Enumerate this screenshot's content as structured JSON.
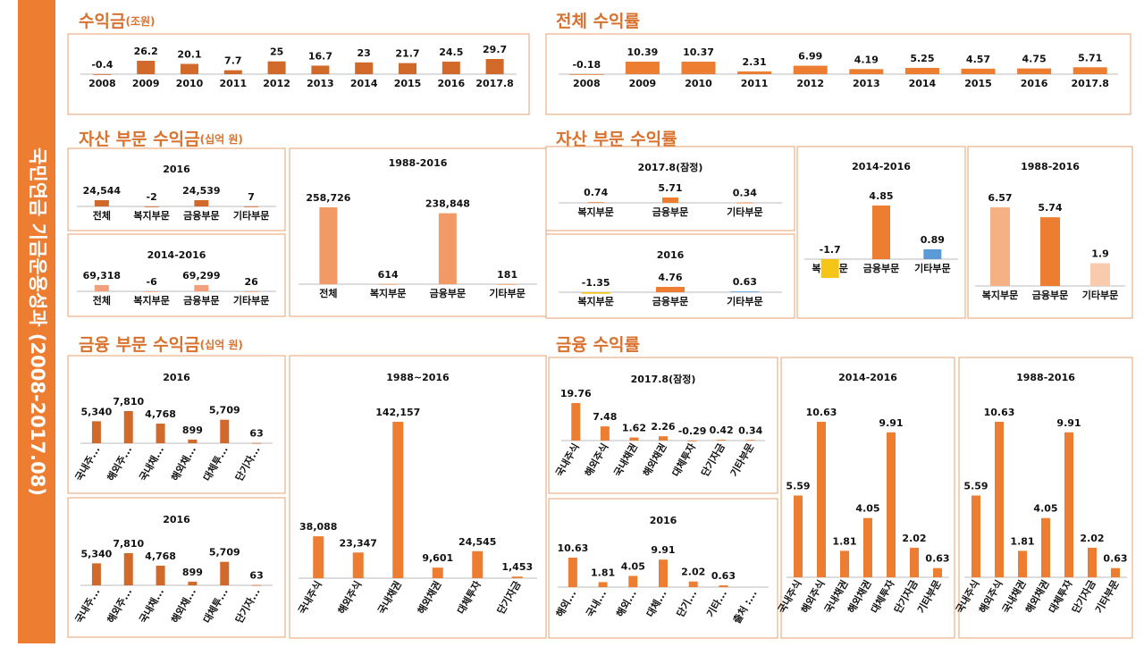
{
  "sidebar_title": "국민연금 기금운용성과 (2008-2017.08)",
  "sections": [
    {
      "title": "수익금",
      "unit": "(조원)"
    },
    {
      "title": "전체 수익률"
    },
    {
      "title": "자산 부문 수익금",
      "unit": "(십억 원)"
    },
    {
      "title": "자산 부문 수익률"
    },
    {
      "title": "금융 부문 수익금",
      "unit": "(십억 원)"
    },
    {
      "title": "금융 수익률"
    }
  ],
  "chart_data": [
    {
      "type": "bar",
      "categories": [
        "2008",
        "2009",
        "2010",
        "2011",
        "2012",
        "2013",
        "2014",
        "2015",
        "2016",
        "2017.8"
      ],
      "values": [
        -0.4,
        26.2,
        20.1,
        7.7,
        25,
        16.7,
        23,
        21.7,
        24.5,
        29.7
      ],
      "color": "#d0692a"
    },
    {
      "type": "bar",
      "categories": [
        "2008",
        "2009",
        "2010",
        "2011",
        "2012",
        "2013",
        "2014",
        "2015",
        "2016",
        "2017.8"
      ],
      "values": [
        -0.18,
        10.39,
        10.37,
        2.31,
        6.99,
        4.19,
        5.25,
        4.57,
        4.75,
        5.71
      ],
      "color": "#ed7d31"
    },
    {
      "type": "bar",
      "title": "2016",
      "categories": [
        "전체",
        "복지부문",
        "금융부문",
        "기타부문"
      ],
      "values": [
        24544,
        -2,
        24539,
        7
      ],
      "value_labels": [
        "24,544",
        "-2",
        "24,539",
        "7"
      ],
      "color": "#d0692a"
    },
    {
      "type": "bar",
      "title": "2014-2016",
      "categories": [
        "전체",
        "복지부문",
        "금융부문",
        "기타부문"
      ],
      "values": [
        69318,
        -6,
        69299,
        26
      ],
      "value_labels": [
        "69,318",
        "-6",
        "69,299",
        "26"
      ],
      "color": "#f0a07a"
    },
    {
      "type": "bar",
      "title": "1988-2016",
      "categories": [
        "전체",
        "복지부문",
        "금융부문",
        "기타부문"
      ],
      "values": [
        258726,
        614,
        238848,
        181
      ],
      "value_labels": [
        "258,726",
        "614",
        "238,848",
        "181"
      ],
      "color": "#f29a66"
    },
    {
      "type": "bar",
      "title": "2017.8(잠정)",
      "categories": [
        "복지부문",
        "금융부문",
        "기타부문"
      ],
      "values": [
        0.74,
        5.71,
        0.34
      ],
      "color": "#ed7d31"
    },
    {
      "type": "bar",
      "title": "2016",
      "categories": [
        "복지부문",
        "금융부문",
        "기타부문"
      ],
      "values": [
        -1.35,
        4.76,
        0.63
      ],
      "colors": [
        "#f5c518",
        "#ed7d31",
        "#5b9bd5"
      ]
    },
    {
      "type": "bar",
      "title": "2014-2016",
      "categories": [
        "복지부문",
        "금융부문",
        "기타부문"
      ],
      "values": [
        -1.7,
        4.85,
        0.89
      ],
      "colors": [
        "#f5c518",
        "#ed7d31",
        "#5b9bd5"
      ]
    },
    {
      "type": "bar",
      "title": "1988-2016",
      "categories": [
        "복지부문",
        "금융부문",
        "기타부문"
      ],
      "values": [
        6.57,
        5.74,
        1.9
      ],
      "colors": [
        "#f4b183",
        "#ed7d31",
        "#f8cbad"
      ]
    },
    {
      "type": "bar",
      "title": "2016",
      "categories": [
        "국내주...",
        "해외주...",
        "국내채...",
        "해외채...",
        "대체투...",
        "단기자..."
      ],
      "values": [
        5340,
        7810,
        4768,
        899,
        5709,
        63
      ],
      "value_labels": [
        "5,340",
        "7,810",
        "4,768",
        "899",
        "5,709",
        "63"
      ],
      "color": "#d0692a"
    },
    {
      "type": "bar",
      "title": "2016",
      "categories": [
        "국내주...",
        "해외주...",
        "국내채...",
        "해외채...",
        "대체투...",
        "단기자..."
      ],
      "values": [
        5340,
        7810,
        4768,
        899,
        5709,
        63
      ],
      "value_labels": [
        "5,340",
        "7,810",
        "4,768",
        "899",
        "5,709",
        "63"
      ],
      "color": "#d0692a"
    },
    {
      "type": "bar",
      "title": "1988~2016",
      "categories": [
        "국내주식",
        "해외주식",
        "국내채권",
        "해외채권",
        "대체투자",
        "단기자금"
      ],
      "values": [
        38088,
        23347,
        142157,
        9601,
        24545,
        1453
      ],
      "value_labels": [
        "38,088",
        "23,347",
        "142,157",
        "9,601",
        "24,545",
        "1,453"
      ],
      "color": "#ed7d31"
    },
    {
      "type": "bar",
      "title": "2017.8(잠정)",
      "categories": [
        "국내주식",
        "해외주식",
        "국내채권",
        "해외채권",
        "대체투자",
        "단기자금",
        "기타부문"
      ],
      "values": [
        19.76,
        7.48,
        1.62,
        2.26,
        -0.29,
        0.42,
        0.34
      ],
      "color": "#ed7d31"
    },
    {
      "type": "bar",
      "title": "2016",
      "categories": [
        "해외...",
        "국내...",
        "해외...",
        "대체...",
        "단기...",
        "기타...",
        "출처 :..."
      ],
      "values": [
        10.63,
        1.81,
        4.05,
        9.91,
        2.02,
        0.63,
        null
      ],
      "color": "#ed7d31"
    },
    {
      "type": "bar",
      "title": "2014-2016",
      "categories": [
        "국내주식",
        "해외주식",
        "국내채권",
        "해외채권",
        "대체투자",
        "단기자금",
        "기타부문"
      ],
      "values": [
        5.59,
        10.63,
        1.81,
        4.05,
        9.91,
        2.02,
        0.63
      ],
      "color": "#ed7d31"
    },
    {
      "type": "bar",
      "title": "1988-2016",
      "categories": [
        "국내주식",
        "해외주식",
        "국내채권",
        "해외채권",
        "대체투자",
        "단기자금",
        "기타부문"
      ],
      "values": [
        5.59,
        10.63,
        1.81,
        4.05,
        9.91,
        2.02,
        0.63
      ],
      "color": "#ed7d31"
    }
  ]
}
